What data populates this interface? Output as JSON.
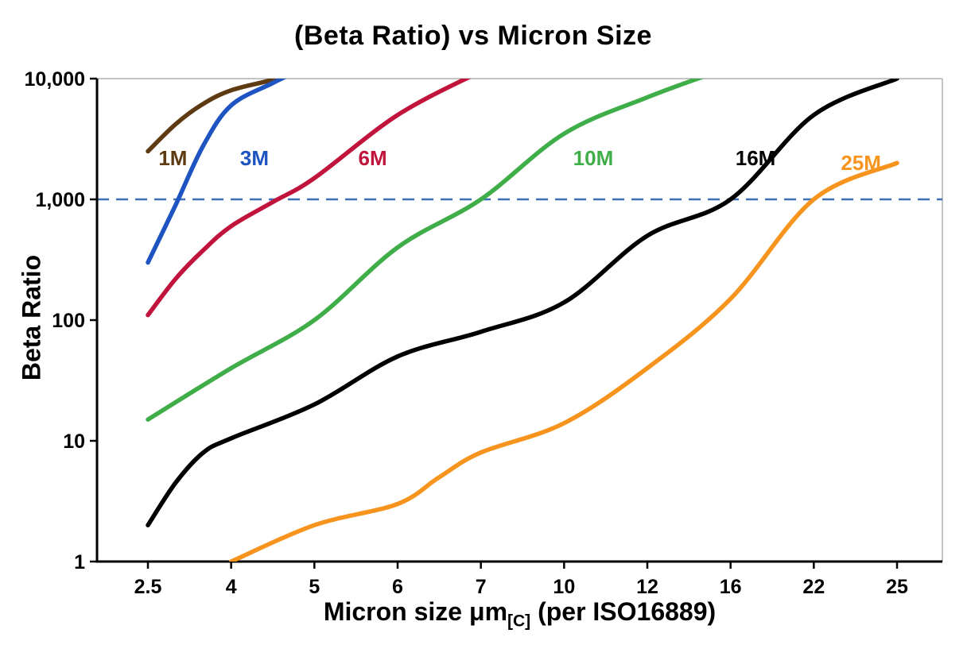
{
  "title": "(Beta Ratio) vs Micron Size",
  "chart_data": {
    "type": "line",
    "title": "(Beta Ratio) vs Micron Size",
    "xlabel": {
      "main": "Micron size μm",
      "sub": "[C]",
      "suffix": " (per ISO16889)"
    },
    "ylabel": "Beta Ratio",
    "x_scale": "categorical",
    "y_scale": "log",
    "categories": [
      2.5,
      4,
      5,
      6,
      7,
      10,
      12,
      16,
      22,
      25
    ],
    "x_tick_labels": [
      "2.5",
      "4",
      "5",
      "6",
      "7",
      "10",
      "12",
      "16",
      "22",
      "25"
    ],
    "y_ticks": [
      1,
      10,
      100,
      1000,
      10000
    ],
    "y_tick_labels": [
      "1",
      "10",
      "100",
      "1,000",
      "10,000"
    ],
    "ylim": [
      1,
      10000
    ],
    "grid": "off",
    "legend_position": "inline-labels",
    "reference_line": {
      "y": 1000,
      "color": "#3f6fb5",
      "style": "dashed"
    },
    "axis_colors": {
      "axis": "#000000",
      "frame": "#b0b0b0"
    },
    "series": [
      {
        "name": "1M",
        "color": "#5e3a12",
        "label_pos": {
          "x": 2.95,
          "y": 2200
        },
        "points": [
          [
            2.5,
            2500
          ],
          [
            3,
            4200
          ],
          [
            3.5,
            6200
          ],
          [
            4,
            8000
          ],
          [
            4.5,
            9800
          ],
          [
            5,
            12500
          ]
        ]
      },
      {
        "name": "3M",
        "color": "#1d54c2",
        "label_pos": {
          "x": 4.28,
          "y": 2200
        },
        "points": [
          [
            2.5,
            300
          ],
          [
            3,
            900
          ],
          [
            3.5,
            2800
          ],
          [
            4,
            6000
          ],
          [
            4.5,
            9200
          ],
          [
            5,
            13500
          ]
        ]
      },
      {
        "name": "6M",
        "color": "#c0143c",
        "label_pos": {
          "x": 5.7,
          "y": 2200
        },
        "points": [
          [
            2.5,
            110
          ],
          [
            3,
            220
          ],
          [
            3.5,
            380
          ],
          [
            4,
            600
          ],
          [
            4.5,
            950
          ],
          [
            5,
            1500
          ],
          [
            6,
            5000
          ],
          [
            7,
            11500
          ]
        ]
      },
      {
        "name": "10M",
        "color": "#3fae49",
        "label_pos": {
          "x": 10.7,
          "y": 2200
        },
        "points": [
          [
            2.5,
            15
          ],
          [
            4,
            40
          ],
          [
            5,
            100
          ],
          [
            6,
            400
          ],
          [
            7,
            1000
          ],
          [
            10,
            3500
          ],
          [
            12,
            7000
          ],
          [
            16,
            12500
          ]
        ]
      },
      {
        "name": "16M",
        "color": "#000000",
        "label_pos": {
          "x": 17.8,
          "y": 2200
        },
        "points": [
          [
            2.5,
            2
          ],
          [
            3,
            4.5
          ],
          [
            3.5,
            8
          ],
          [
            4,
            10.5
          ],
          [
            5,
            20
          ],
          [
            6,
            50
          ],
          [
            7,
            80
          ],
          [
            10,
            140
          ],
          [
            12,
            500
          ],
          [
            16,
            1000
          ],
          [
            22,
            5000
          ],
          [
            25,
            10000
          ]
        ]
      },
      {
        "name": "25M",
        "color": "#f7941e",
        "label_pos": {
          "x": 23.7,
          "y": 2000
        },
        "points": [
          [
            4,
            1
          ],
          [
            5,
            2
          ],
          [
            6,
            3
          ],
          [
            6.5,
            5
          ],
          [
            7,
            8
          ],
          [
            10,
            14
          ],
          [
            12,
            40
          ],
          [
            16,
            150
          ],
          [
            22,
            1000
          ],
          [
            25,
            2000
          ]
        ]
      }
    ]
  }
}
